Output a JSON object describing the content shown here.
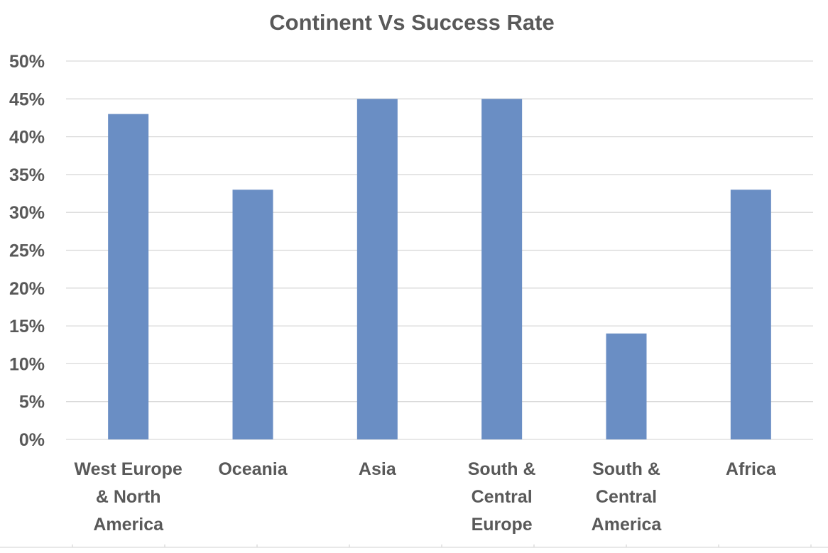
{
  "chart_data": {
    "type": "bar",
    "title": "Continent Vs Success Rate",
    "xlabel": "",
    "ylabel": "",
    "categories": [
      [
        "West Europe",
        "& North",
        "America"
      ],
      [
        "Oceania"
      ],
      [
        "Asia"
      ],
      [
        "South &",
        "Central",
        "Europe"
      ],
      [
        "South &",
        "Central",
        "America"
      ],
      [
        "Africa"
      ]
    ],
    "values": [
      0.43,
      0.33,
      0.45,
      0.45,
      0.14,
      0.33
    ],
    "ylim": [
      0,
      0.5
    ],
    "yticks": [
      {
        "value": 0,
        "label": "0%"
      },
      {
        "value": 0.05,
        "label": "5%"
      },
      {
        "value": 0.1,
        "label": "10%"
      },
      {
        "value": 0.15,
        "label": "15%"
      },
      {
        "value": 0.2,
        "label": "20%"
      },
      {
        "value": 0.25,
        "label": "25%"
      },
      {
        "value": 0.3,
        "label": "30%"
      },
      {
        "value": 0.35,
        "label": "35%"
      },
      {
        "value": 0.4,
        "label": "40%"
      },
      {
        "value": 0.45,
        "label": "45%"
      },
      {
        "value": 0.5,
        "label": "50%"
      }
    ],
    "grid": true,
    "legend": "none",
    "bar_color": "#6a8ec4",
    "grid_color": "#d9d9d9",
    "text_color": "#595959"
  }
}
